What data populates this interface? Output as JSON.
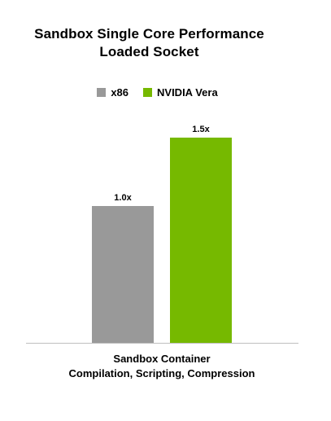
{
  "chart_data": {
    "type": "bar",
    "title": "Sandbox Single Core Performance",
    "subtitle": "Loaded Socket",
    "categories": [
      "Sandbox Container"
    ],
    "category_sublabel": "Compilation, Scripting, Compression",
    "series": [
      {
        "name": "x86",
        "values": [
          1.0
        ],
        "labels": [
          "1.0x"
        ],
        "color": "#999999"
      },
      {
        "name": "NVIDIA Vera",
        "values": [
          1.5
        ],
        "labels": [
          "1.5x"
        ],
        "color": "#76b900"
      }
    ],
    "ylim": [
      0,
      1.5
    ],
    "legend_position": "top-center",
    "grid": false
  }
}
